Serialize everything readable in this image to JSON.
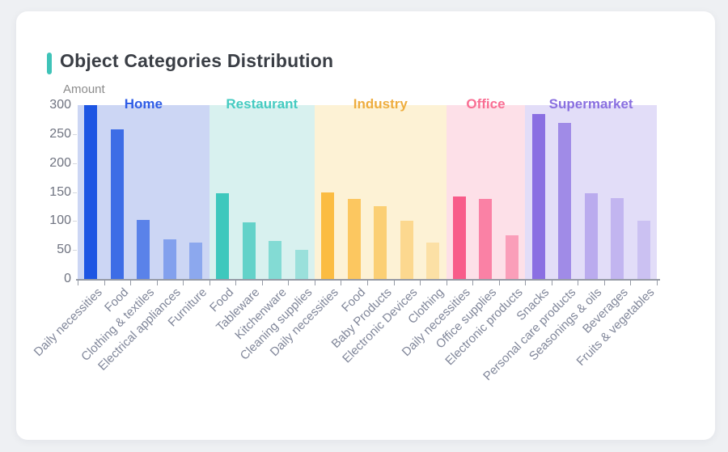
{
  "page": {
    "background": "#eef0f3"
  },
  "header": {
    "accent_color": "#3fc3b8"
  },
  "chart_data": {
    "type": "bar",
    "title": "Object Categories Distribution",
    "ylabel": "Amount",
    "xlabel": "",
    "ylim": [
      0,
      300
    ],
    "yticks": [
      0,
      50,
      100,
      150,
      200,
      250,
      300
    ],
    "grid": false,
    "legend_position": "top-inside-bands",
    "axis_colors": {
      "axis_line": "#959aa5",
      "tick": "#959aa5",
      "y_label": "#6f7380",
      "x_label": "#81879a"
    },
    "groups": [
      {
        "name": "Home",
        "label_color": "#2e5ce6",
        "bar_color": "#1d55e3",
        "band_color": "#ccd6f4",
        "bars": [
          {
            "label": "Daily necessities",
            "value": 300,
            "alpha": 1
          },
          {
            "label": "Food",
            "value": 258,
            "alpha": 0.82
          },
          {
            "label": "Clothing & textiles",
            "value": 102,
            "alpha": 0.65
          },
          {
            "label": "Electrical appliances",
            "value": 69,
            "alpha": 0.42
          },
          {
            "label": "Furniture",
            "value": 63,
            "alpha": 0.36
          }
        ]
      },
      {
        "name": "Restaurant",
        "label_color": "#45cbc1",
        "bar_color": "#3ec8bd",
        "band_color": "#d8f1ef",
        "bars": [
          {
            "label": "Food",
            "value": 148,
            "alpha": 1
          },
          {
            "label": "Tableware",
            "value": 97,
            "alpha": 0.76
          },
          {
            "label": "Kitchenware",
            "value": 65,
            "alpha": 0.55
          },
          {
            "label": "Cleaning supplies",
            "value": 50,
            "alpha": 0.4
          }
        ]
      },
      {
        "name": "Industry",
        "label_color": "#eead3e",
        "bar_color": "#fbbc42",
        "band_color": "#fdf2d5",
        "bars": [
          {
            "label": "Daily necessities",
            "value": 150,
            "alpha": 1
          },
          {
            "label": "Food",
            "value": 138,
            "alpha": 0.8
          },
          {
            "label": "Baby Products",
            "value": 125,
            "alpha": 0.66
          },
          {
            "label": "Electronic Devices",
            "value": 100,
            "alpha": 0.48
          },
          {
            "label": "Clothing",
            "value": 63,
            "alpha": 0.33
          }
        ]
      },
      {
        "name": "Office",
        "label_color": "#f96e93",
        "bar_color": "#f85c8a",
        "band_color": "#fde0e8",
        "bars": [
          {
            "label": "Daily necessities",
            "value": 142,
            "alpha": 1
          },
          {
            "label": "Office supplies",
            "value": 138,
            "alpha": 0.72
          },
          {
            "label": "Electronic products",
            "value": 75,
            "alpha": 0.5
          }
        ]
      },
      {
        "name": "Supermarket",
        "label_color": "#8a70e0",
        "bar_color": "#8a6fe2",
        "band_color": "#e2ddf8",
        "bars": [
          {
            "label": "Snacks",
            "value": 285,
            "alpha": 1
          },
          {
            "label": "Personal care products",
            "value": 270,
            "alpha": 0.75
          },
          {
            "label": "Seasonings & oils",
            "value": 148,
            "alpha": 0.45
          },
          {
            "label": "Beverages",
            "value": 140,
            "alpha": 0.36
          },
          {
            "label": "Fruits & vegetables",
            "value": 100,
            "alpha": 0.26
          }
        ]
      }
    ]
  }
}
